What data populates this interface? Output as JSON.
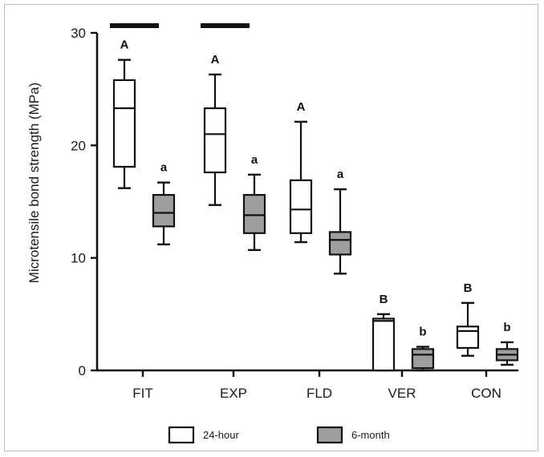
{
  "chart_data": {
    "type": "boxplot",
    "ylabel": "Microtensile bond strength (MPa)",
    "xlabel": "",
    "ylim": [
      0,
      30
    ],
    "yticks": [
      "0",
      "10",
      "20",
      "30"
    ],
    "categories": [
      "FIT",
      "EXP",
      "FLD",
      "VER",
      "CON"
    ],
    "series": [
      {
        "name": "24-hour",
        "fill": "#ffffff",
        "boxes": [
          {
            "min": 16.2,
            "q1": 18.1,
            "median": 23.3,
            "q3": 25.8,
            "max": 27.6,
            "label": "A"
          },
          {
            "min": 14.7,
            "q1": 17.6,
            "median": 21.0,
            "q3": 23.3,
            "max": 26.3,
            "label": "A"
          },
          {
            "min": 11.4,
            "q1": 12.2,
            "median": 14.3,
            "q3": 16.9,
            "max": 22.1,
            "label": "A"
          },
          {
            "min": 0.0,
            "q1": 0.0,
            "median": 4.4,
            "q3": 4.6,
            "max": 5.0,
            "label": "B"
          },
          {
            "min": 1.3,
            "q1": 2.0,
            "median": 3.5,
            "q3": 3.9,
            "max": 6.0,
            "label": "B"
          }
        ]
      },
      {
        "name": "6-month",
        "fill": "#9e9e9e",
        "boxes": [
          {
            "min": 11.2,
            "q1": 12.8,
            "median": 14.0,
            "q3": 15.6,
            "max": 16.7,
            "label": "a"
          },
          {
            "min": 10.7,
            "q1": 12.2,
            "median": 13.8,
            "q3": 15.6,
            "max": 17.4,
            "label": "a"
          },
          {
            "min": 8.6,
            "q1": 10.3,
            "median": 11.6,
            "q3": 12.3,
            "max": 16.1,
            "label": "a"
          },
          {
            "min": 0.0,
            "q1": 0.2,
            "median": 1.4,
            "q3": 1.9,
            "max": 2.1,
            "label": "b"
          },
          {
            "min": 0.5,
            "q1": 0.9,
            "median": 1.4,
            "q3": 1.9,
            "max": 2.5,
            "label": "b"
          }
        ]
      }
    ],
    "significance_bars": [
      {
        "category": "FIT"
      },
      {
        "category": "EXP"
      }
    ],
    "legend": [
      {
        "label": "24-hour",
        "fill": "#ffffff"
      },
      {
        "label": "6-month",
        "fill": "#9e9e9e"
      }
    ]
  }
}
